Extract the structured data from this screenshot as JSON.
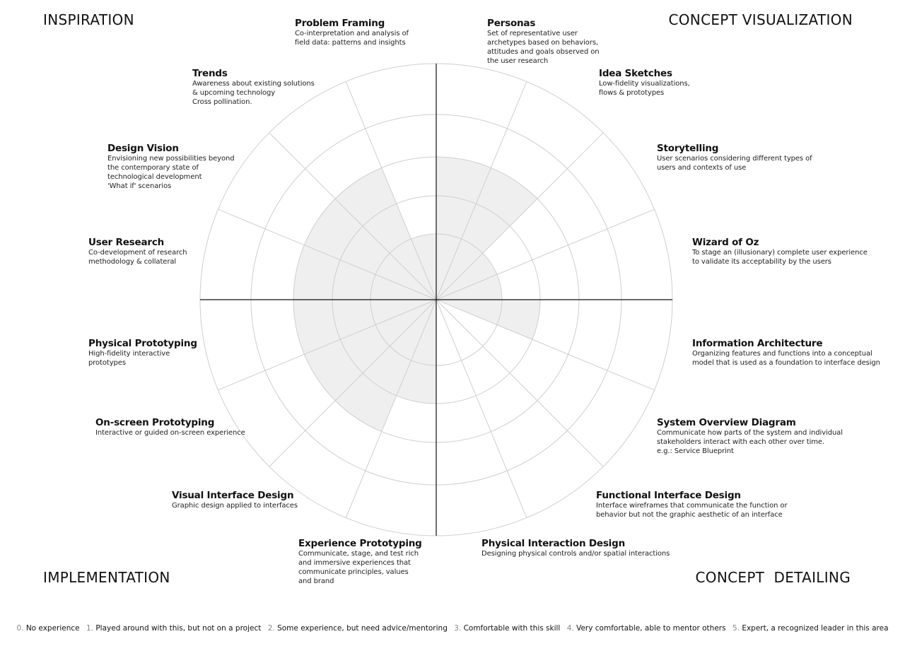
{
  "quadrants": {
    "top_left": "INSPIRATION",
    "top_right": "CONCEPT VISUALIZATION",
    "bottom_left": "IMPLEMENTATION",
    "bottom_right": "CONCEPT  DETAILING"
  },
  "skills": [
    {
      "id": "personas",
      "title": "Personas",
      "desc": "Set of representative user\narchetypes based on behaviors,\nattitudes and goals observed on\nthe user research"
    },
    {
      "id": "idea-sketches",
      "title": "Idea Sketches",
      "desc": "Low-fidelity visualizations,\nflows & prototypes"
    },
    {
      "id": "storytelling",
      "title": "Storytelling",
      "desc": "User scenarios considering different types of\nusers and contexts of use"
    },
    {
      "id": "wizard-of-oz",
      "title": "Wizard of Oz",
      "desc": "To stage an (illusionary) complete user experience\nto validate its acceptability by the users"
    },
    {
      "id": "information-architecture",
      "title": "Information Architecture",
      "desc": "Organizing features and functions into a conceptual\nmodel that is used as a foundation to interface design"
    },
    {
      "id": "system-overview-diagram",
      "title": "System Overview Diagram",
      "desc": "Communicate how parts of the system and individual\nstakeholders interact with each other over time.\ne.g.: Service Blueprint"
    },
    {
      "id": "functional-interface-design",
      "title": "Functional Interface Design",
      "desc": "Interface wireframes that communicate the function or\nbehavior but not the graphic aesthetic of an interface"
    },
    {
      "id": "physical-interaction-design",
      "title": "Physical Interaction Design",
      "desc": "Designing physical controls and/or spatial interactions"
    },
    {
      "id": "experience-prototyping",
      "title": "Experience Prototyping",
      "desc": "Communicate, stage, and test rich\nand immersive experiences that\ncommunicate principles, values\nand brand"
    },
    {
      "id": "visual-interface-design",
      "title": "Visual Interface Design",
      "desc": "Graphic design applied to interfaces"
    },
    {
      "id": "on-screen-prototyping",
      "title": "On-screen Prototyping",
      "desc": "Interactive or guided on-screen experience"
    },
    {
      "id": "physical-prototyping",
      "title": "Physical Prototyping",
      "desc": "High-fidelity interactive\nprototypes"
    },
    {
      "id": "user-research",
      "title": "User Research",
      "desc": "Co-development of research\nmethodology & collateral"
    },
    {
      "id": "design-vision",
      "title": "Design Vision",
      "desc": "Envisioning new possibilities beyond\nthe contemporary state of\ntechnological development\n'What if' scenarios"
    },
    {
      "id": "trends",
      "title": "Trends",
      "desc": "Awareness about existing solutions\n& upcoming technology\nCross pollination."
    },
    {
      "id": "problem-framing",
      "title": "Problem Framing",
      "desc": "Co-interpretation and analysis of\nfield data: patterns and insights"
    }
  ],
  "skill_levels": [
    3,
    3,
    1,
    1,
    2,
    0,
    0,
    0,
    2,
    3,
    3,
    3,
    3,
    3,
    3,
    1
  ],
  "legend": [
    {
      "num": "0.",
      "text": "No experience"
    },
    {
      "num": "1.",
      "text": "Played around with this, but not on a project"
    },
    {
      "num": "2.",
      "text": "Some experience, but need advice/mentoring"
    },
    {
      "num": "3.",
      "text": "Comfortable with this skill"
    },
    {
      "num": "4.",
      "text": "Very comfortable, able to mentor others"
    },
    {
      "num": "5.",
      "text": "Expert, a recognized leader in this area"
    }
  ],
  "colors": {
    "fill": "#efefef",
    "ring": "#cfcfcf",
    "axis": "#111111"
  }
}
